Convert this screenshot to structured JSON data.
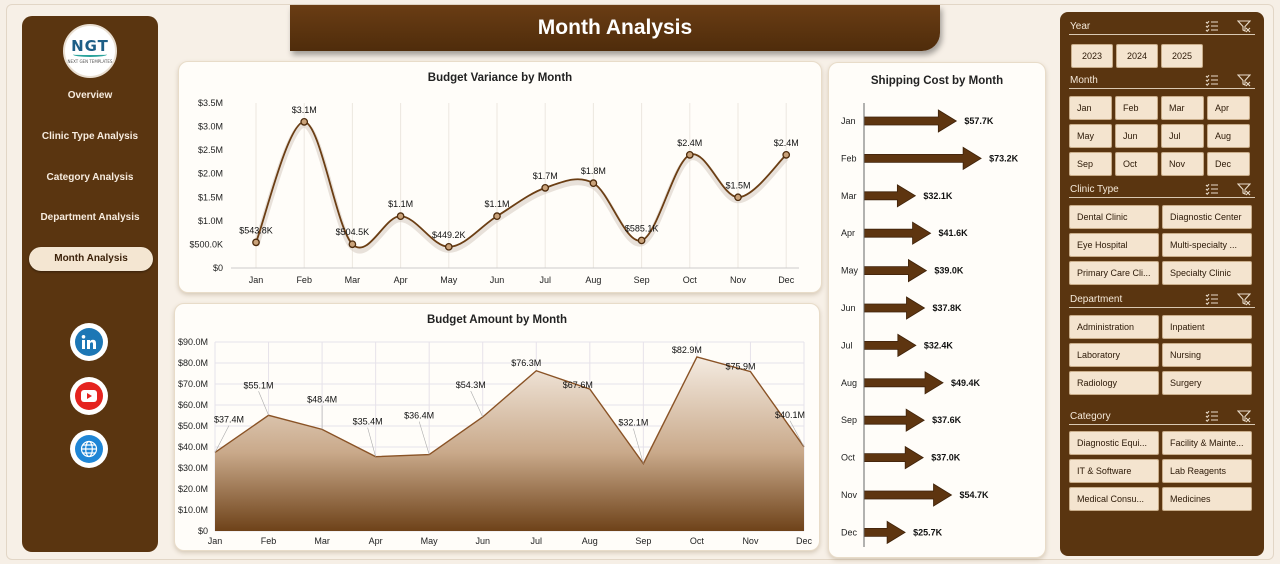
{
  "header": {
    "title": "Month Analysis"
  },
  "logo": {
    "mark": "NGT",
    "sub": "NEXT GEN TEMPLATES"
  },
  "nav": {
    "items": [
      {
        "label": "Overview"
      },
      {
        "label": "Clinic Type Analysis"
      },
      {
        "label": "Category Analysis"
      },
      {
        "label": "Department Analysis"
      },
      {
        "label": "Month Analysis",
        "active": true
      }
    ],
    "social": [
      "linkedin-icon",
      "youtube-icon",
      "globe-icon"
    ]
  },
  "colors": {
    "brand_brown": "#5a3510",
    "line_brown": "#6b3e14",
    "area_fill": "#8a5a30",
    "chip_bg": "#f4e4cf"
  },
  "variance_chart": {
    "title": "Budget Variance by Month",
    "chart_data": {
      "type": "line",
      "categories": [
        "Jan",
        "Feb",
        "Mar",
        "Apr",
        "May",
        "Jun",
        "Jul",
        "Aug",
        "Sep",
        "Oct",
        "Nov",
        "Dec"
      ],
      "values": [
        543.8,
        3100,
        504.5,
        1100,
        449.2,
        1100,
        1700,
        1800,
        585.1,
        2400,
        1500,
        2400
      ],
      "labels": [
        "$543.8K",
        "$3.1M",
        "$504.5K",
        "$1.1M",
        "$449.2K",
        "$1.1M",
        "$1.7M",
        "$1.8M",
        "$585.1K",
        "$2.4M",
        "$1.5M",
        "$2.4M"
      ],
      "yticks": [
        "$0",
        "$500.0K",
        "$1.0M",
        "$1.5M",
        "$2.0M",
        "$2.5M",
        "$3.0M",
        "$3.5M"
      ],
      "ylim": [
        0,
        3500
      ],
      "unit": "thousands USD"
    }
  },
  "amount_chart": {
    "title": "Budget Amount by Month",
    "chart_data": {
      "type": "area",
      "categories": [
        "Jan",
        "Feb",
        "Mar",
        "Apr",
        "May",
        "Jun",
        "Jul",
        "Aug",
        "Sep",
        "Oct",
        "Nov",
        "Dec"
      ],
      "values": [
        37.4,
        55.1,
        48.4,
        35.4,
        36.4,
        54.3,
        76.3,
        67.6,
        32.1,
        82.9,
        75.9,
        40.1
      ],
      "labels": [
        "$37.4M",
        "$55.1M",
        "$48.4M",
        "$35.4M",
        "$36.4M",
        "$54.3M",
        "$76.3M",
        "$67.6M",
        "$32.1M",
        "$82.9M",
        "$75.9M",
        "$40.1M"
      ],
      "yticks": [
        "$0",
        "$10.0M",
        "$20.0M",
        "$30.0M",
        "$40.0M",
        "$50.0M",
        "$60.0M",
        "$70.0M",
        "$80.0M",
        "$90.0M"
      ],
      "ylim": [
        0,
        90
      ],
      "unit": "millions USD"
    }
  },
  "shipping_chart": {
    "title": "Shipping Cost by Month",
    "chart_data": {
      "type": "bar",
      "orientation": "horizontal",
      "categories": [
        "Jan",
        "Feb",
        "Mar",
        "Apr",
        "May",
        "Jun",
        "Jul",
        "Aug",
        "Sep",
        "Oct",
        "Nov",
        "Dec"
      ],
      "values": [
        57.7,
        73.2,
        32.1,
        41.6,
        39.0,
        37.8,
        32.4,
        49.4,
        37.6,
        37.0,
        54.7,
        25.7
      ],
      "labels": [
        "$57.7K",
        "$73.2K",
        "$32.1K",
        "$41.6K",
        "$39.0K",
        "$37.8K",
        "$32.4K",
        "$49.4K",
        "$37.6K",
        "$37.0K",
        "$54.7K",
        "$25.7K"
      ],
      "unit": "thousands USD"
    }
  },
  "slicers": {
    "year": {
      "label": "Year",
      "options": [
        "2023",
        "2024",
        "2025"
      ]
    },
    "month": {
      "label": "Month",
      "options": [
        "Jan",
        "Feb",
        "Mar",
        "Apr",
        "May",
        "Jun",
        "Jul",
        "Aug",
        "Sep",
        "Oct",
        "Nov",
        "Dec"
      ]
    },
    "clinic_type": {
      "label": "Clinic Type",
      "options": [
        "Dental Clinic",
        "Diagnostic Center",
        "Eye Hospital",
        "Multi-specialty ...",
        "Primary Care Cli...",
        "Specialty Clinic"
      ]
    },
    "department": {
      "label": "Department",
      "options": [
        "Administration",
        "Inpatient",
        "Laboratory",
        "Nursing",
        "Radiology",
        "Surgery"
      ]
    },
    "category": {
      "label": "Category",
      "options": [
        "Diagnostic Equi...",
        "Facility & Mainte...",
        "IT & Software",
        "Lab Reagents",
        "Medical Consu...",
        "Medicines"
      ]
    }
  }
}
